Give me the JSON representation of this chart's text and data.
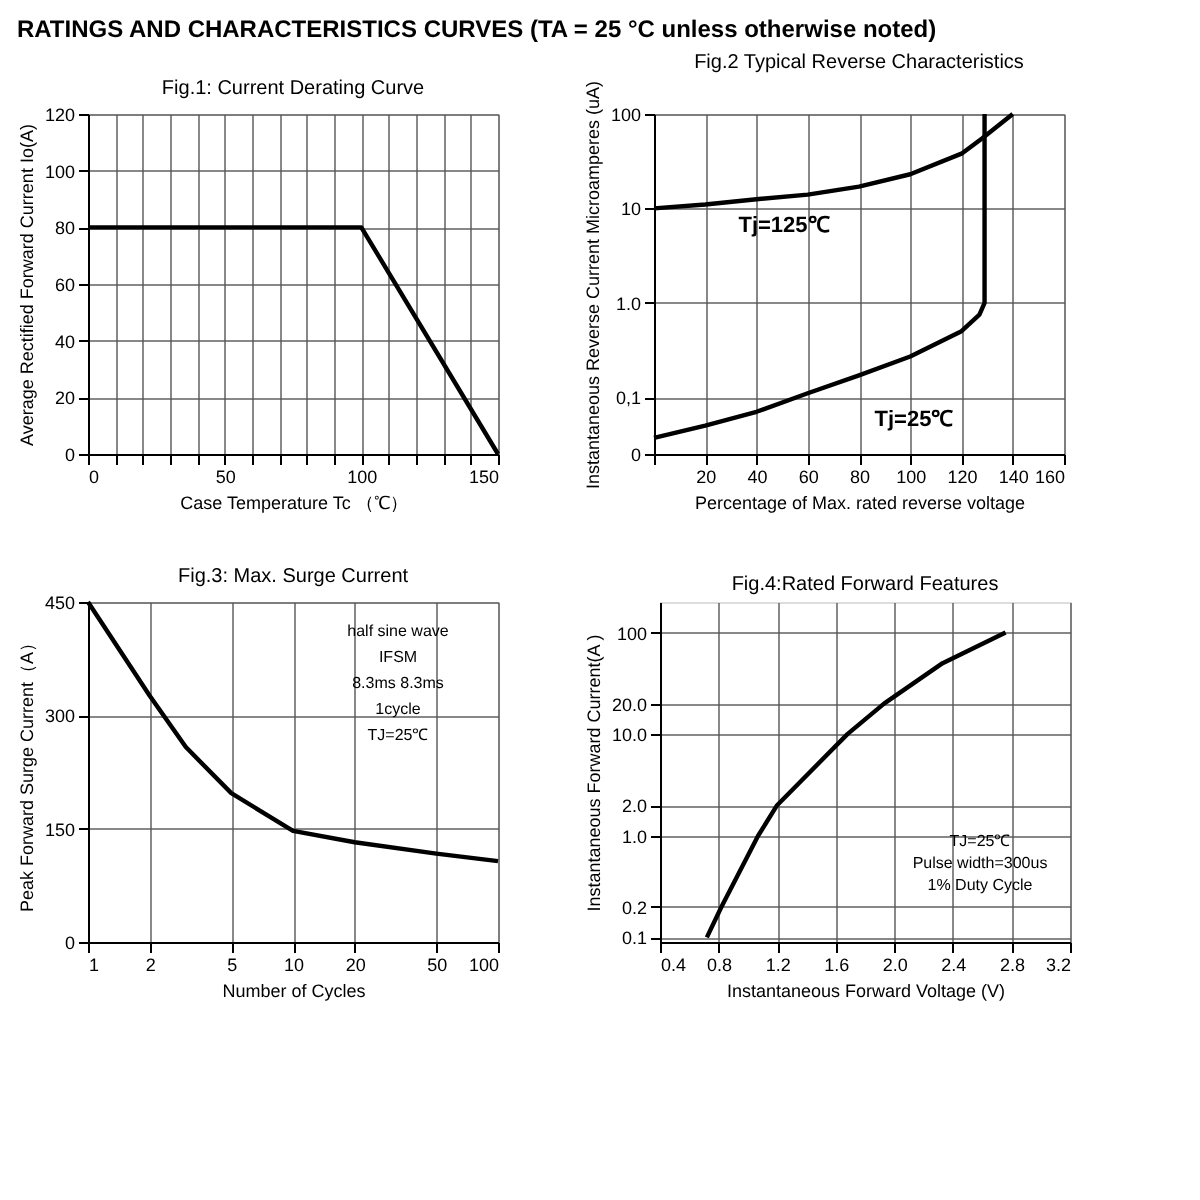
{
  "chart_data": [
    {
      "type": "line",
      "title": "Fig.1: Current Derating Curve",
      "xlabel": "Case Temperature Tc （℃）",
      "ylabel": "Average Rectified Forward Current Io(A)",
      "annotations": [
        "RATINGS AND CHARACTERISTICS CURVES (TA = 25 °C unless otherwise noted)"
      ],
      "x": [
        0,
        100,
        150
      ],
      "series": [
        {
          "color": "#000000",
          "values": [
            80,
            80,
            0
          ]
        }
      ],
      "xlim": [
        0,
        150
      ],
      "ylim": [
        0,
        120
      ],
      "xticks": [
        0,
        {
          "value": 10,
          "label": null
        },
        {
          "value": 20,
          "label": null
        },
        {
          "value": 30,
          "label": null
        },
        {
          "value": 40,
          "label": null
        },
        50,
        {
          "value": 60,
          "label": null
        },
        {
          "value": 70,
          "label": null
        },
        {
          "value": 80,
          "label": null
        },
        {
          "value": 90,
          "label": null
        },
        100,
        {
          "value": 110,
          "label": null
        },
        {
          "value": 120,
          "label": null
        },
        {
          "value": 130,
          "label": null
        },
        {
          "value": 140,
          "label": null
        },
        150
      ],
      "yticks": [
        0,
        20,
        40,
        60,
        80,
        100,
        120
      ],
      "grid": true,
      "legend": false,
      "marker": "none",
      "line_style": "solid"
    },
    {
      "type": "line",
      "title": "Fig.2 Typical Reverse Characteristics",
      "xlabel": "Percentage of Max. rated reverse voltage",
      "ylabel": "Instantaneous Reverse Current Microamperes (uA)",
      "series": [
        {
          "color": "#000000",
          "x": [
            0,
            20,
            40,
            60,
            80,
            100,
            120,
            128,
            140
          ],
          "values": [
            10,
            11,
            12.5,
            14,
            17,
            23,
            38,
            55,
            100
          ]
        },
        {
          "color": "#000000",
          "x": [
            0,
            20,
            40,
            60,
            80,
            100,
            120,
            127,
            129,
            129,
            129
          ],
          "values": [
            0.037,
            0.05,
            0.07,
            0.11,
            0.17,
            0.27,
            0.5,
            0.75,
            1.0,
            10,
            100
          ]
        }
      ],
      "annotations": [
        "Tj=125℃",
        "Tj=25℃"
      ],
      "xlim": [
        0,
        160
      ],
      "ylim": [
        0.025,
        100
      ],
      "log": "y",
      "xticks": [
        {
          "value": 0,
          "label": null
        },
        20,
        40,
        60,
        80,
        100,
        120,
        140,
        160
      ],
      "yticks": [
        {
          "value": 0.025,
          "label": "0"
        },
        {
          "value": 0.1,
          "label": "0,1"
        },
        {
          "value": 1,
          "label": "1.0"
        },
        10,
        100
      ],
      "grid": true,
      "legend": false,
      "marker": "none",
      "line_style": "solid"
    },
    {
      "type": "line",
      "title": "Fig.3: Max. Surge Current",
      "xlabel": "Number of Cycles",
      "ylabel": "Peak Forward Surge Current（A）",
      "x": [
        1,
        2,
        3,
        5,
        10,
        20,
        50,
        100
      ],
      "series": [
        {
          "color": "#000000",
          "values": [
            450,
            326,
            258,
            197,
            147,
            132,
            117,
            107
          ]
        }
      ],
      "annotations": [
        "half sine wave",
        "IFSM",
        "8.3ms  8.3ms",
        "1cycle",
        "TJ=25℃"
      ],
      "xlim": [
        1,
        100
      ],
      "ylim": [
        0,
        450
      ],
      "log": "x",
      "xticks": [
        1,
        2,
        5,
        10,
        20,
        50,
        100
      ],
      "yticks": [
        0,
        150,
        300,
        450
      ],
      "grid": true,
      "legend": false,
      "marker": "none",
      "line_style": "solid"
    },
    {
      "type": "line",
      "title": "Fig.4:Rated Forward Features",
      "xlabel": "Instantaneous Forward Voltage (V)",
      "ylabel": "Instantaneous Forward Current(A )",
      "x": [
        0.72,
        0.82,
        1.07,
        1.2,
        1.68,
        1.93,
        2.33,
        2.76
      ],
      "series": [
        {
          "color": "#000000",
          "values": [
            0.1,
            0.2,
            1.0,
            2.0,
            10,
            20,
            50,
            100
          ]
        }
      ],
      "annotations": [
        "TJ=25℃",
        "Pulse width=300us",
        "1% Duty Cycle"
      ],
      "xlim": [
        0.4,
        3.2
      ],
      "ylim": [
        0.09,
        200
      ],
      "log": "y",
      "xticks": [
        0.4,
        0.8,
        1.2,
        1.6,
        {
          "value": 2,
          "label": "2.0"
        },
        2.4,
        2.8,
        3.2
      ],
      "yticks": [
        0.1,
        0.2,
        {
          "value": 1,
          "label": "1.0"
        },
        {
          "value": 2,
          "label": "2.0"
        },
        {
          "value": 10,
          "label": "10.0"
        },
        {
          "value": 20,
          "label": "20.0"
        },
        100
      ],
      "grid": true,
      "legend": false,
      "marker": "none",
      "line_style": "solid"
    }
  ]
}
